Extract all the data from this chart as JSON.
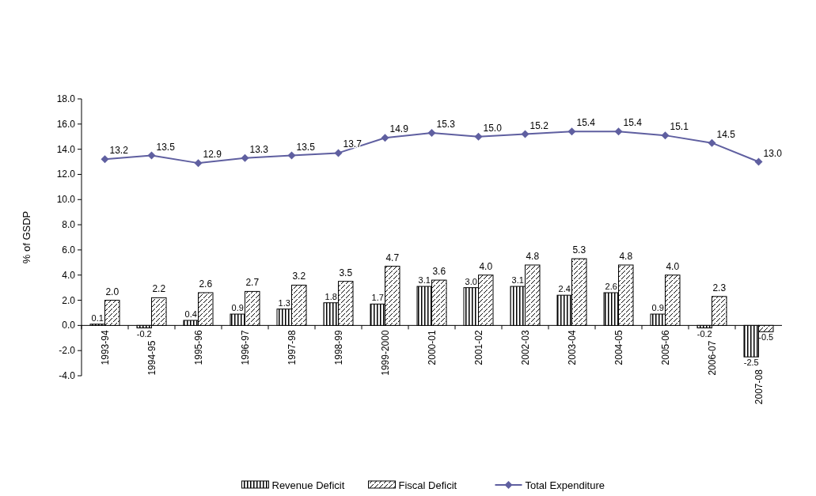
{
  "chart_data": {
    "type": "bar",
    "ylabel": "% of GSDP",
    "categories": [
      "1993-94",
      "1994-95",
      "1995-96",
      "1996-97",
      "1997-98",
      "1998-99",
      "1999-2000",
      "2000-01",
      "2001-02",
      "2002-03",
      "2003-04",
      "2004-05",
      "2005-06",
      "2006-07",
      "2007-08"
    ],
    "series": [
      {
        "name": "Revenue Deficit",
        "color": "#000000",
        "values": [
          0.1,
          -0.2,
          0.4,
          0.9,
          1.3,
          1.8,
          1.7,
          3.1,
          3.0,
          3.1,
          2.4,
          2.6,
          0.9,
          -0.2,
          -2.5
        ],
        "value_labels": [
          "0.1",
          "-0.2",
          "0.4",
          "0.9",
          "1.3",
          "1.8",
          "1.7",
          "3.1",
          "3.0",
          "3.1",
          "2.4",
          "2.6",
          "0.9",
          "-0.2",
          "-2.5"
        ]
      },
      {
        "name": "Fiscal Deficit",
        "color": "#000000",
        "values": [
          2.0,
          2.2,
          2.6,
          2.7,
          3.2,
          3.5,
          4.7,
          3.6,
          4.0,
          4.8,
          5.3,
          4.8,
          4.0,
          2.3,
          -0.5
        ],
        "value_labels": [
          "2.0",
          "2.2",
          "2.6",
          "2.7",
          "3.2",
          "3.5",
          "4.7",
          "3.6",
          "4.0",
          "4.8",
          "5.3",
          "4.8",
          "4.0",
          "2.3",
          "-0.5"
        ]
      },
      {
        "name": "Total Expenditure",
        "type": "line",
        "color": "#5f5fa0",
        "marker": "diamond",
        "values": [
          13.2,
          13.5,
          12.9,
          13.3,
          13.5,
          13.7,
          14.9,
          15.3,
          15.0,
          15.2,
          15.4,
          15.4,
          15.1,
          14.5,
          13.0
        ],
        "value_labels": [
          "13.2",
          "13.5",
          "12.9",
          "13.3",
          "13.5",
          "13.7",
          "14.9",
          "15.3",
          "15.0",
          "15.2",
          "15.4",
          "15.4",
          "15.1",
          "14.5",
          "13.0"
        ]
      }
    ],
    "ylim": [
      -4,
      18
    ],
    "yticks": [
      {
        "value": -4,
        "label": "-4.0"
      },
      {
        "value": -2,
        "label": "-2.0"
      },
      {
        "value": 0,
        "label": "0.0"
      },
      {
        "value": 2,
        "label": "2.0"
      },
      {
        "value": 4,
        "label": "4.0"
      },
      {
        "value": 6,
        "label": "6.0"
      },
      {
        "value": 8,
        "label": "8.0"
      },
      {
        "value": 10,
        "label": "10.0"
      },
      {
        "value": 12,
        "label": "12.0"
      },
      {
        "value": 14,
        "label": "14.0"
      },
      {
        "value": 16,
        "label": "16.0"
      },
      {
        "value": 18,
        "label": "18.0"
      }
    ],
    "legend": "bottom"
  }
}
